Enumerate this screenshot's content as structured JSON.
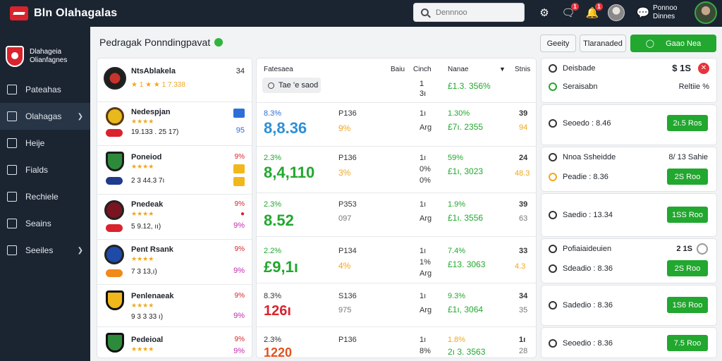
{
  "app": {
    "title": "Bln Olahagalas"
  },
  "search": {
    "placeholder": "Dennnoo"
  },
  "topbar": {
    "badges": [
      "1",
      "1",
      "1"
    ],
    "user_line1": "Ponnoo",
    "user_line2": "Dinnes"
  },
  "club": {
    "line1": "Dlahageia",
    "line2": "Olianfagnes"
  },
  "sidebar": {
    "items": [
      {
        "label": "Pateahas"
      },
      {
        "label": "Olahagas"
      },
      {
        "label": "Heije"
      },
      {
        "label": "Fialds"
      },
      {
        "label": "Rechiele"
      },
      {
        "label": "Seains"
      },
      {
        "label": "Seeiles"
      }
    ]
  },
  "header": {
    "title": "Pedragak Ponndingpavat",
    "btn1": "Geeity",
    "btn2": "Tlaranaded",
    "btn3": "Gaao Nea"
  },
  "teams": [
    {
      "name": "NtsAblakela",
      "meta": "★ 1 ★ ★ 1 7.338",
      "pct": "34"
    },
    {
      "name": "Nedespjan",
      "stars": "★★★★",
      "meta": "19.133 . 25 17)",
      "pct": "95"
    },
    {
      "name": "Poneiod",
      "stars": "★★★★",
      "meta": "2 3 44.3 7ı",
      "pct": "9%"
    },
    {
      "name": "Pnedeak",
      "stars": "★★★★",
      "meta": "5 9.12, ıı)",
      "pct": "9%"
    },
    {
      "name": "Pent Rsank",
      "stars": "★★★★",
      "meta": "7 3 13,ı)",
      "pct": "9%"
    },
    {
      "name": "Penlenaeak",
      "stars": "★★★★",
      "meta": "9 3 3 33 ı)",
      "pct": "9%"
    },
    {
      "name": "Pedeioal",
      "stars": "★★★★",
      "meta": "9 2 3 18 ı)",
      "pct": "9%"
    }
  ],
  "team_pct_small": [
    "",
    "9%",
    "9%",
    "9%",
    "9%",
    "9%",
    "9%"
  ],
  "middle": {
    "headers": {
      "c1": "Fatesaea",
      "c2": "Baiu",
      "c3": "Cinch",
      "c4": "Nanae",
      "c5": "Stnis"
    },
    "filter": "Tae ’e saod",
    "first": {
      "c3a": "1",
      "c3b": "3ı",
      "price": "£1.3. 356%"
    },
    "rows": [
      {
        "pct": "8.3%",
        "big": "8,8.36",
        "col2a": "P136",
        "col2b": "9%",
        "c3a": "1ı",
        "c3b": "Arg",
        "pp": "1.30%",
        "price": "£7ı. 2355",
        "n1": "39",
        "n2": "94"
      },
      {
        "pct": "2.3%",
        "big": "8,4,110",
        "col2a": "P136",
        "col2b": "3%",
        "c3a": "1ı",
        "c3b": "0%",
        "c3c": "0%",
        "pp": "59%",
        "price": "£1ı, 3023",
        "n1": "24",
        "n2": "48.3"
      },
      {
        "pct": "2.3%",
        "big": "8.52",
        "col2a": "P353",
        "col2b": "097",
        "c3a": "1ı",
        "c3b": "Arg",
        "pp": "1.9%",
        "price": "£1ı. 3556",
        "n1": "39",
        "n2": "63"
      },
      {
        "pct": "2.2%",
        "big": "£9,1ı",
        "col2a": "P134",
        "col2b": "4%",
        "c3a": "1ı",
        "c3b": "1%",
        "c3c": "Arg",
        "pp": "7.4%",
        "price": "£13. 3063",
        "n1": "33",
        "n2": "4.3"
      },
      {
        "pct": "8.3%",
        "big": "126ı",
        "col2a": "S136",
        "col2b": "975",
        "c3a": "1ı",
        "c3b": "Arg",
        "pp": "9.3%",
        "price": "£1ı, 3064",
        "n1": "34",
        "n2": "35"
      },
      {
        "pct": "2.3%",
        "big": "1220",
        "col2a": "P136",
        "col2b": "",
        "c3a": "1ı",
        "c3b": "8%",
        "pp": "1.8%",
        "price": "2ı 3. 3563",
        "n1": "1ı",
        "n2": "28"
      }
    ]
  },
  "right": {
    "r0a_label": "Deisbade",
    "r0a_val": "$ 1S",
    "r0b_label": "Seraisabn",
    "r0b_val": "Reltiie %",
    "rows": [
      {
        "label": "Seoedo : 8.46",
        "btn": "2ı.5 Ros"
      },
      {
        "label": "Nnoa Ssheidde",
        "val": "8/ 13 Sahie"
      },
      {
        "label": "Peadie : 8.36",
        "btn": "2S Roo"
      },
      {
        "label": "Saedio : 13.34",
        "btn": "1SS Roo"
      },
      {
        "label": "Pofiaiaideuien",
        "val": "2 1S"
      },
      {
        "label": "Sdeadio : 8.36",
        "btn": "2S Roo"
      },
      {
        "label": "Sadedio : 8.36",
        "btn": "1S6 Roo"
      },
      {
        "label": "Seoedio : 8.36",
        "btn": "7.5 Roo"
      }
    ]
  },
  "colors": {
    "accent": "#22a72f",
    "dark": "#1b2532",
    "brand": "#d9232d"
  },
  "icons": [
    "search-icon",
    "bell-icon",
    "message-icon",
    "user-icon",
    "shield-icon"
  ]
}
